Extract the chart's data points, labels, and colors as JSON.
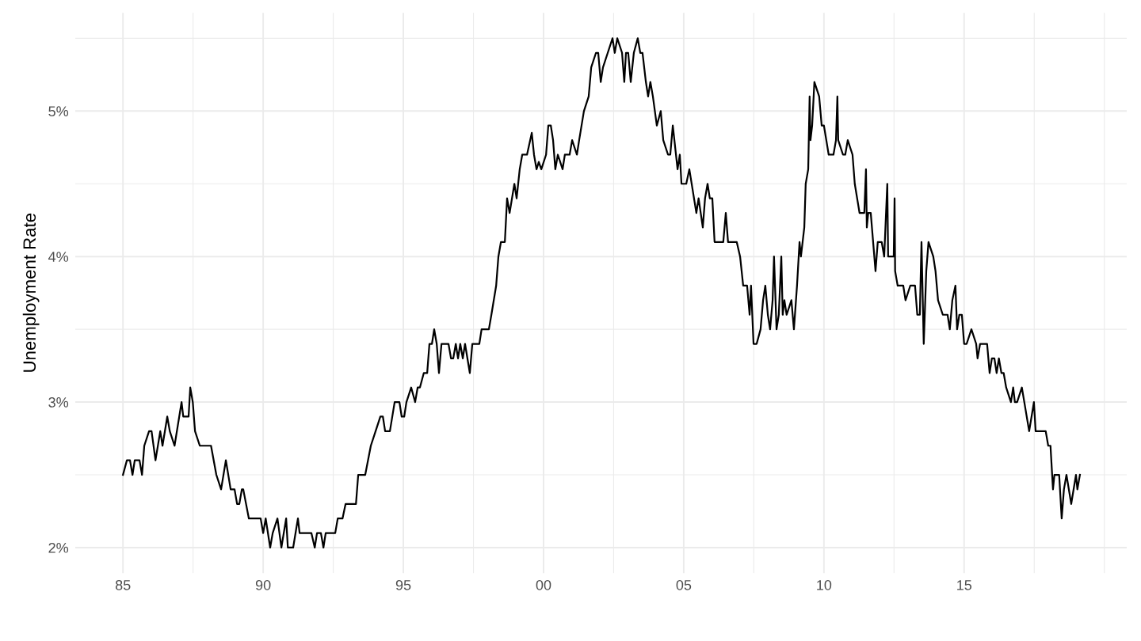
{
  "chart_data": {
    "type": "line",
    "ylabel": "Unemployment Rate",
    "grid": true,
    "marker": "none",
    "line_style": "solid",
    "xlim": [
      1983.3,
      2020.8
    ],
    "ylim": [
      1.825,
      5.675
    ],
    "xticks": [
      {
        "value": 1985,
        "label": "85"
      },
      {
        "value": 1987.5,
        "label": null
      },
      {
        "value": 1990,
        "label": "90"
      },
      {
        "value": 1992.5,
        "label": null
      },
      {
        "value": 1995,
        "label": "95"
      },
      {
        "value": 1997.5,
        "label": null
      },
      {
        "value": 2000,
        "label": "00"
      },
      {
        "value": 2002.5,
        "label": null
      },
      {
        "value": 2005,
        "label": "05"
      },
      {
        "value": 2007.5,
        "label": null
      },
      {
        "value": 2010,
        "label": "10"
      },
      {
        "value": 2012.5,
        "label": null
      },
      {
        "value": 2015,
        "label": "15"
      },
      {
        "value": 2017.5,
        "label": null
      },
      {
        "value": 2020,
        "label": null
      }
    ],
    "yticks": [
      {
        "value": 2,
        "label": "2%"
      },
      {
        "value": 2.5,
        "label": null
      },
      {
        "value": 3,
        "label": "3%"
      },
      {
        "value": 3.5,
        "label": null
      },
      {
        "value": 4,
        "label": "4%"
      },
      {
        "value": 4.5,
        "label": null
      },
      {
        "value": 5,
        "label": "5%"
      },
      {
        "value": 5.5,
        "label": null
      }
    ],
    "series": [
      {
        "color": "#000000",
        "x": [
          1985.0,
          1985.14,
          1985.25,
          1985.34,
          1985.42,
          1985.59,
          1985.68,
          1985.76,
          1985.93,
          1986.02,
          1986.16,
          1986.33,
          1986.41,
          1986.58,
          1986.67,
          1986.84,
          1987.09,
          1987.15,
          1987.34,
          1987.4,
          1987.49,
          1987.57,
          1987.74,
          1988.14,
          1988.33,
          1988.5,
          1988.67,
          1988.84,
          1988.98,
          1989.07,
          1989.15,
          1989.24,
          1989.29,
          1989.49,
          1989.91,
          1990.0,
          1990.09,
          1990.25,
          1990.34,
          1990.51,
          1990.65,
          1990.82,
          1990.88,
          1991.07,
          1991.24,
          1991.3,
          1991.72,
          1991.84,
          1991.92,
          1992.06,
          1992.15,
          1992.23,
          1992.57,
          1992.66,
          1992.83,
          1992.94,
          1993.31,
          1993.39,
          1993.64,
          1993.84,
          1994.01,
          1994.18,
          1994.27,
          1994.35,
          1994.52,
          1994.69,
          1994.86,
          1994.94,
          1995.03,
          1995.11,
          1995.28,
          1995.42,
          1995.51,
          1995.59,
          1995.73,
          1995.85,
          1995.93,
          1996.02,
          1996.1,
          1996.19,
          1996.27,
          1996.36,
          1996.61,
          1996.7,
          1996.78,
          1996.87,
          1996.95,
          1997.03,
          1997.12,
          1997.2,
          1997.37,
          1997.46,
          1997.71,
          1997.79,
          1998.05,
          1998.14,
          1998.31,
          1998.39,
          1998.48,
          1998.62,
          1998.7,
          1998.79,
          1998.96,
          1999.04,
          1999.15,
          1999.24,
          1999.41,
          1999.58,
          1999.66,
          1999.75,
          1999.83,
          1999.92,
          2000.09,
          2000.17,
          2000.26,
          2000.34,
          2000.42,
          2000.51,
          2000.68,
          2000.76,
          2000.93,
          2001.02,
          2001.19,
          2001.27,
          2001.44,
          2001.61,
          2001.7,
          2001.87,
          2001.95,
          2002.04,
          2002.12,
          2002.29,
          2002.46,
          2002.54,
          2002.63,
          2002.8,
          2002.88,
          2002.94,
          2003.02,
          2003.11,
          2003.22,
          2003.36,
          2003.45,
          2003.53,
          2003.65,
          2003.73,
          2003.81,
          2003.9,
          2004.04,
          2004.18,
          2004.27,
          2004.44,
          2004.52,
          2004.61,
          2004.78,
          2004.86,
          2004.92,
          2005.09,
          2005.2,
          2005.45,
          2005.53,
          2005.68,
          2005.76,
          2005.85,
          2005.93,
          2006.02,
          2006.1,
          2006.41,
          2006.5,
          2006.58,
          2006.89,
          2007.01,
          2007.12,
          2007.26,
          2007.35,
          2007.4,
          2007.49,
          2007.6,
          2007.74,
          2007.83,
          2007.91,
          2008.0,
          2008.08,
          2008.17,
          2008.22,
          2008.31,
          2008.39,
          2008.48,
          2008.53,
          2008.59,
          2008.67,
          2008.84,
          2008.93,
          2009.04,
          2009.13,
          2009.18,
          2009.3,
          2009.35,
          2009.44,
          2009.49,
          2009.52,
          2009.58,
          2009.66,
          2009.83,
          2009.92,
          2010.0,
          2010.17,
          2010.34,
          2010.43,
          2010.48,
          2010.51,
          2010.68,
          2010.76,
          2010.85,
          2011.02,
          2011.1,
          2011.27,
          2011.44,
          2011.5,
          2011.53,
          2011.58,
          2011.67,
          2011.84,
          2011.92,
          2012.06,
          2012.15,
          2012.26,
          2012.29,
          2012.49,
          2012.52,
          2012.54,
          2012.63,
          2012.83,
          2012.91,
          2013.08,
          2013.25,
          2013.33,
          2013.42,
          2013.48,
          2013.56,
          2013.65,
          2013.73,
          2013.9,
          2013.98,
          2014.07,
          2014.24,
          2014.41,
          2014.49,
          2014.58,
          2014.69,
          2014.75,
          2014.83,
          2014.92,
          2015.0,
          2015.09,
          2015.26,
          2015.43,
          2015.48,
          2015.57,
          2015.82,
          2015.91,
          2015.99,
          2016.08,
          2016.16,
          2016.24,
          2016.33,
          2016.41,
          2016.5,
          2016.67,
          2016.75,
          2016.81,
          2016.89,
          2017.06,
          2017.32,
          2017.49,
          2017.55,
          2017.91,
          2018.0,
          2018.08,
          2018.17,
          2018.22,
          2018.39,
          2018.48,
          2018.56,
          2018.65,
          2018.82,
          2018.99,
          2019.04,
          2019.13
        ],
        "values": [
          2.5,
          2.6,
          2.6,
          2.5,
          2.6,
          2.6,
          2.5,
          2.7,
          2.8,
          2.8,
          2.6,
          2.8,
          2.7,
          2.9,
          2.8,
          2.7,
          3.0,
          2.9,
          2.9,
          3.1,
          3.0,
          2.8,
          2.7,
          2.7,
          2.5,
          2.4,
          2.6,
          2.4,
          2.4,
          2.3,
          2.3,
          2.4,
          2.4,
          2.2,
          2.2,
          2.1,
          2.2,
          2.0,
          2.1,
          2.2,
          2.0,
          2.2,
          2.0,
          2.0,
          2.2,
          2.1,
          2.1,
          2.0,
          2.1,
          2.1,
          2.0,
          2.1,
          2.1,
          2.2,
          2.2,
          2.3,
          2.3,
          2.5,
          2.5,
          2.7,
          2.8,
          2.9,
          2.9,
          2.8,
          2.8,
          3.0,
          3.0,
          2.9,
          2.9,
          3.0,
          3.1,
          3.0,
          3.1,
          3.1,
          3.2,
          3.2,
          3.4,
          3.4,
          3.5,
          3.4,
          3.2,
          3.4,
          3.4,
          3.3,
          3.3,
          3.4,
          3.3,
          3.4,
          3.3,
          3.4,
          3.2,
          3.4,
          3.4,
          3.5,
          3.5,
          3.6,
          3.8,
          4.0,
          4.1,
          4.1,
          4.4,
          4.3,
          4.5,
          4.4,
          4.6,
          4.7,
          4.7,
          4.85,
          4.7,
          4.6,
          4.65,
          4.6,
          4.7,
          4.9,
          4.9,
          4.8,
          4.6,
          4.7,
          4.6,
          4.7,
          4.7,
          4.8,
          4.7,
          4.8,
          5.0,
          5.1,
          5.3,
          5.4,
          5.4,
          5.2,
          5.3,
          5.4,
          5.5,
          5.4,
          5.5,
          5.4,
          5.2,
          5.4,
          5.4,
          5.2,
          5.4,
          5.5,
          5.4,
          5.4,
          5.2,
          5.1,
          5.2,
          5.1,
          4.9,
          5.0,
          4.8,
          4.7,
          4.7,
          4.9,
          4.6,
          4.7,
          4.5,
          4.5,
          4.6,
          4.3,
          4.4,
          4.2,
          4.4,
          4.5,
          4.4,
          4.4,
          4.1,
          4.1,
          4.3,
          4.1,
          4.1,
          4.0,
          3.8,
          3.8,
          3.6,
          3.8,
          3.4,
          3.4,
          3.5,
          3.7,
          3.8,
          3.6,
          3.5,
          3.7,
          4.0,
          3.5,
          3.6,
          4.0,
          3.6,
          3.7,
          3.6,
          3.7,
          3.5,
          3.8,
          4.1,
          4.0,
          4.2,
          4.5,
          4.6,
          5.1,
          4.8,
          4.9,
          5.2,
          5.1,
          4.9,
          4.9,
          4.7,
          4.7,
          4.8,
          5.1,
          4.8,
          4.7,
          4.7,
          4.8,
          4.7,
          4.5,
          4.3,
          4.3,
          4.6,
          4.2,
          4.3,
          4.3,
          3.9,
          4.1,
          4.1,
          4.0,
          4.5,
          4.0,
          4.0,
          4.4,
          3.9,
          3.8,
          3.8,
          3.7,
          3.8,
          3.8,
          3.6,
          3.6,
          4.1,
          3.4,
          3.9,
          4.1,
          4.0,
          3.9,
          3.7,
          3.6,
          3.6,
          3.5,
          3.7,
          3.8,
          3.5,
          3.6,
          3.6,
          3.4,
          3.4,
          3.5,
          3.4,
          3.3,
          3.4,
          3.4,
          3.2,
          3.3,
          3.3,
          3.2,
          3.3,
          3.2,
          3.2,
          3.1,
          3.0,
          3.1,
          3.0,
          3.0,
          3.1,
          2.8,
          3.0,
          2.8,
          2.8,
          2.7,
          2.7,
          2.4,
          2.5,
          2.5,
          2.2,
          2.4,
          2.5,
          2.3,
          2.5,
          2.4,
          2.5
        ]
      }
    ]
  }
}
